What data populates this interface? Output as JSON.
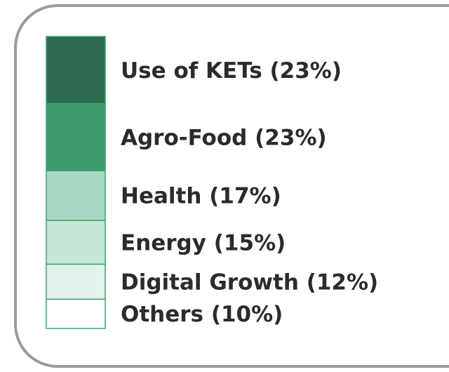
{
  "chart_data": {
    "type": "stacked-bar",
    "categories": [
      "Use of KETs",
      "Agro-Food",
      "Health",
      "Energy",
      "Digital Growth",
      "Others"
    ],
    "values": [
      23,
      23,
      17,
      15,
      12,
      10
    ],
    "value_labels": [
      "(23%)",
      "(23%)",
      "(17%)",
      "(15%)",
      "(12%)",
      "(10%)"
    ],
    "colors": [
      "#2e6a4f",
      "#3f9a6e",
      "#a8d8c3",
      "#c6e6d8",
      "#e3f2eb",
      "#ffffff"
    ],
    "edge_color": "#3aa66b"
  }
}
